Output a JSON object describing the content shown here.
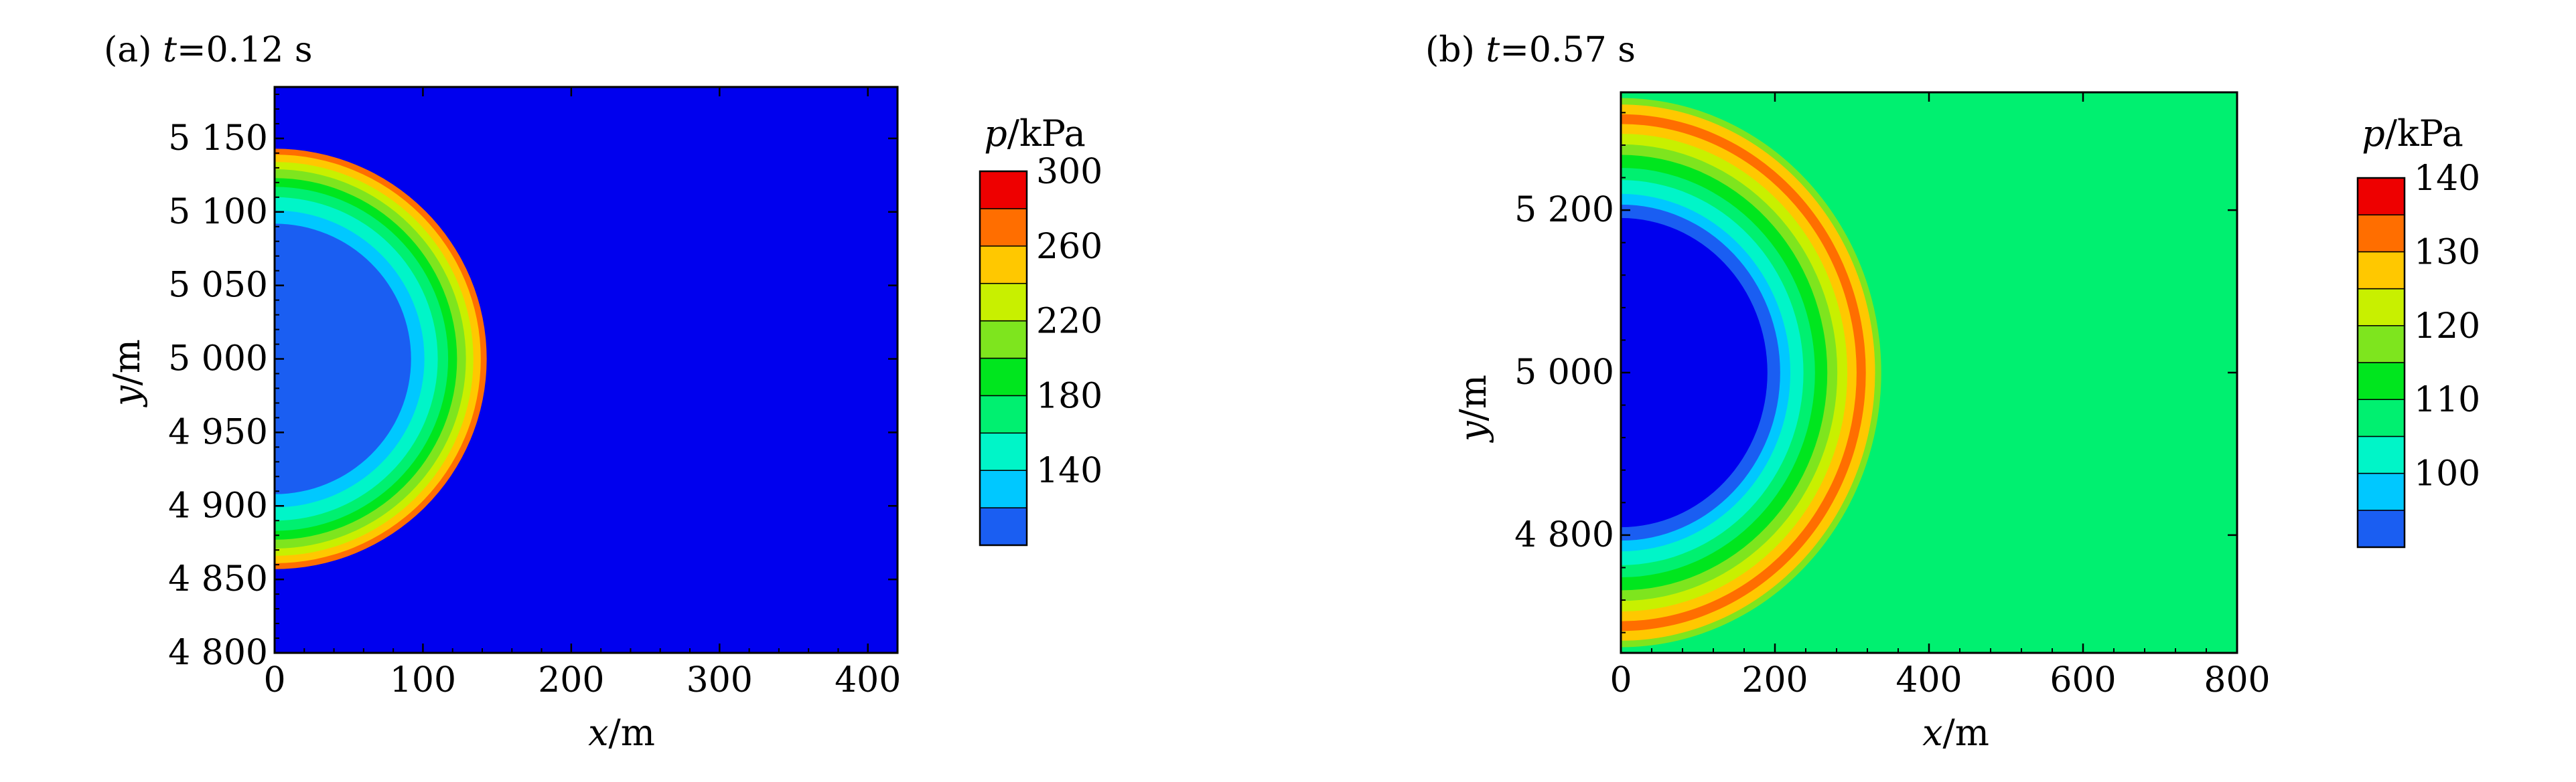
{
  "chart_data": [
    {
      "type": "heatmap",
      "panel_label": "(a)",
      "time_var": "t",
      "time_value": "=0.12 s",
      "xlabel_var": "x",
      "xlabel_unit": "/m",
      "ylabel_var": "y",
      "ylabel_unit": "/m",
      "xlim": [
        0,
        420
      ],
      "ylim": [
        4800,
        5185
      ],
      "xticks": [
        0,
        100,
        200,
        300,
        400
      ],
      "xtick_labels": [
        "0",
        "100",
        "200",
        "300",
        "400"
      ],
      "yticks": [
        4800,
        4850,
        4900,
        4950,
        5000,
        5050,
        5100,
        5150
      ],
      "ytick_labels": [
        "4 800",
        "4 850",
        "4 900",
        "4 950",
        "5 000",
        "5 050",
        "5 100",
        "5 150"
      ],
      "ring_center": [
        0,
        5000
      ],
      "ring_radii_from_outer": [
        147,
        143,
        139,
        134,
        129,
        123,
        117,
        110,
        101,
        92
      ],
      "ring_level_index_from_outer": [
        0,
        9,
        8,
        7,
        6,
        5,
        4,
        3,
        2,
        1
      ],
      "background_level_index": 0,
      "colorbar": {
        "var": "p",
        "unit": "/kPa",
        "levels": [
          120,
          140,
          160,
          180,
          200,
          220,
          240,
          260,
          280,
          300
        ],
        "labels": [
          "140",
          "180",
          "220",
          "260",
          "300"
        ],
        "label_values": [
          140,
          180,
          220,
          260,
          300
        ]
      }
    },
    {
      "type": "heatmap",
      "panel_label": "(b)",
      "time_var": "t",
      "time_value": "=0.57 s",
      "xlabel_var": "x",
      "xlabel_unit": "/m",
      "ylabel_var": "y",
      "ylabel_unit": "/m",
      "xlim": [
        0,
        800
      ],
      "ylim": [
        4655,
        5345
      ],
      "xticks": [
        0,
        200,
        400,
        600,
        800
      ],
      "xtick_labels": [
        "0",
        "200",
        "400",
        "600",
        "800"
      ],
      "yticks": [
        4800,
        5000,
        5200
      ],
      "ytick_labels": [
        "4 800",
        "5 000",
        "5 200"
      ],
      "ring_center": [
        0,
        5000
      ],
      "ring_radii_from_outer": [
        338,
        330,
        318,
        306,
        294,
        281,
        268,
        252,
        237,
        220
      ],
      "ring_level_index_from_outer": [
        6,
        8,
        9,
        8,
        7,
        6,
        5,
        4,
        3,
        2
      ],
      "inner_level_index": 1,
      "background_level_index": 4,
      "colorbar": {
        "var": "p",
        "unit": "/kPa",
        "levels": [
          97,
          100,
          105,
          110,
          115,
          120,
          125,
          130,
          135,
          140
        ],
        "labels": [
          "100",
          "110",
          "120",
          "130",
          "140"
        ],
        "label_values": [
          100,
          110,
          120,
          130,
          140
        ]
      }
    }
  ],
  "colors": {
    "levels": [
      "#0000ee",
      "#1a5ef2",
      "#00c8ff",
      "#00f5c8",
      "#00f070",
      "#00e61e",
      "#7ee51e",
      "#c8f000",
      "#ffc800",
      "#ff6e00",
      "#ee0000"
    ],
    "axis": "#000000"
  }
}
